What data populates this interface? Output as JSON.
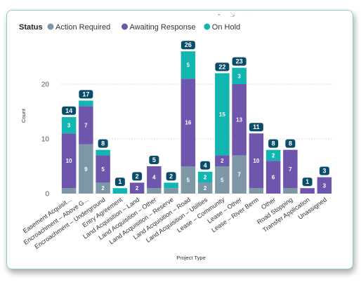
{
  "toolbar": {
    "icons": [
      "pin-icon",
      "focus-icon",
      "more-options-icon"
    ]
  },
  "colors": {
    "frame": "#8ccfd3",
    "total_badge": "#0a4d6b",
    "grid": "#d7d7d7"
  },
  "chart_data": {
    "type": "bar",
    "stacked": true,
    "legend": {
      "title": "Status",
      "position": "top-left"
    },
    "xlabel": "Project Type",
    "ylabel": "Count",
    "ylim": [
      0,
      27
    ],
    "yticks": [
      0,
      10,
      20
    ],
    "grid": true,
    "categories": [
      "Easement Acquisit...",
      "Encroachment – Above G...",
      "Encroachment – Underground",
      "Entry Agreement",
      "Land Acquisition – Land",
      "Land Acquisition – Other",
      "Land Acquisition – Reserve",
      "Land Acquisition – Road",
      "Land Acquisition – Utilities",
      "Lease – Community",
      "Lease – Other",
      "Lease – River Berm",
      "Other",
      "Road Stopping",
      "Transfer Application",
      "Unassigned"
    ],
    "series": [
      {
        "name": "Action Required",
        "color": "#7e97a6",
        "values": [
          1,
          9,
          2,
          0,
          0,
          1,
          1,
          5,
          2,
          5,
          7,
          1,
          0,
          1,
          0,
          0
        ]
      },
      {
        "name": "Awaiting Response",
        "color": "#6e56ad",
        "values": [
          10,
          7,
          5,
          0,
          2,
          4,
          0,
          16,
          0,
          2,
          13,
          10,
          6,
          7,
          1,
          3
        ]
      },
      {
        "name": "On Hold",
        "color": "#13b5b1",
        "values": [
          3,
          1,
          1,
          1,
          0,
          0,
          1,
          5,
          2,
          15,
          3,
          0,
          2,
          0,
          0,
          0
        ]
      }
    ],
    "totals": [
      14,
      17,
      8,
      1,
      2,
      5,
      2,
      26,
      4,
      22,
      23,
      11,
      8,
      8,
      1,
      3
    ]
  }
}
